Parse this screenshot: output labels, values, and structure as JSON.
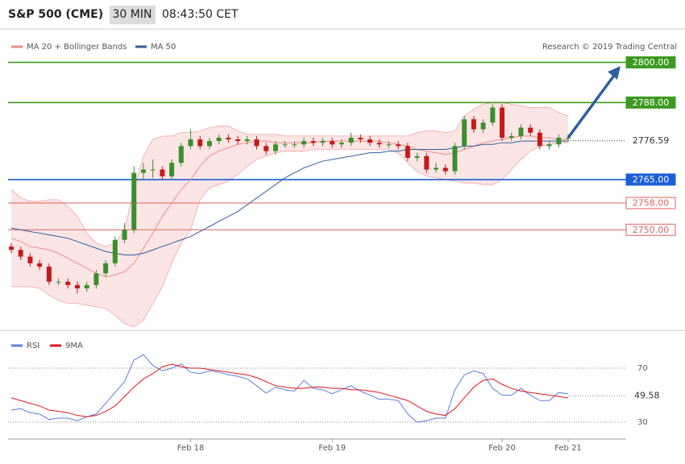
{
  "header": {
    "title": "S&P 500 (CME)",
    "interval": "30 MIN",
    "time": "08:43:50 CET"
  },
  "chart_data": [
    {
      "type": "candlestick",
      "categories": [
        null,
        null,
        null,
        null,
        null,
        null,
        null,
        null,
        null,
        null,
        null,
        null,
        null,
        null,
        null,
        null,
        null,
        null,
        null,
        "Feb 18",
        null,
        null,
        null,
        null,
        null,
        null,
        null,
        null,
        null,
        null,
        null,
        null,
        null,
        null,
        "Feb 19",
        null,
        null,
        null,
        null,
        null,
        null,
        null,
        null,
        null,
        null,
        null,
        null,
        null,
        null,
        null,
        null,
        null,
        "Feb 20",
        null,
        null,
        null,
        null,
        null,
        null,
        "Feb 21"
      ],
      "open": [
        2745,
        2744,
        2742,
        2740,
        2739,
        2734.5,
        2734.5,
        2733.5,
        2732.5,
        2733.5,
        2737,
        2740,
        2747,
        2750,
        2767,
        2768,
        2768,
        2766,
        2770,
        2775,
        2777,
        2775,
        2776.5,
        2777.5,
        2777,
        2776.5,
        2777,
        2775,
        2773.5,
        2775.5,
        2775.5,
        2775.5,
        2776.5,
        2776,
        2776.5,
        2775.5,
        2776,
        2777.5,
        2777,
        2776,
        2775.5,
        2775.5,
        2775,
        2771.5,
        2772,
        2768,
        2768.5,
        2767.5,
        2775,
        2783,
        2780,
        2782,
        2786.5,
        2777.5,
        2778,
        2780.5,
        2779,
        2775,
        2775.5,
        2777.5
      ],
      "high": [
        2746,
        2745,
        2743,
        2741,
        2740,
        2735.5,
        2735.5,
        2734.5,
        2734.5,
        2738,
        2741,
        2748,
        2752,
        2769,
        2770,
        2771,
        2769,
        2771,
        2776,
        2780,
        2778,
        2777.5,
        2778.5,
        2778.5,
        2778,
        2778,
        2778,
        2776,
        2776.5,
        2776.5,
        2776.5,
        2777.5,
        2777.5,
        2777.5,
        2777.5,
        2777,
        2779,
        2778.5,
        2778,
        2777,
        2776.5,
        2776.5,
        2776,
        2773,
        2773,
        2770,
        2769.5,
        2776,
        2784,
        2784,
        2783,
        2787.5,
        2787.5,
        2779,
        2781.5,
        2781.5,
        2780,
        2776.5,
        2778.5,
        2778.5
      ],
      "low": [
        2743,
        2741,
        2739,
        2738,
        2733.5,
        2733.5,
        2732.5,
        2731,
        2731.5,
        2732.5,
        2736,
        2739,
        2746,
        2749,
        2765,
        2765.5,
        2765,
        2765,
        2769,
        2774,
        2774,
        2774,
        2775.5,
        2776,
        2775.5,
        2775.5,
        2774,
        2772.5,
        2772.5,
        2774.5,
        2774.5,
        2774.5,
        2775,
        2775,
        2774.5,
        2774.5,
        2775,
        2776,
        2775,
        2774.5,
        2774.5,
        2774,
        2770.5,
        2770.5,
        2767,
        2767,
        2766.5,
        2766.5,
        2774,
        2779,
        2779,
        2781,
        2776.5,
        2776.5,
        2777,
        2778,
        2774,
        2774,
        2774.5,
        2776.5
      ],
      "close": [
        2744,
        2742,
        2740,
        2739,
        2734.5,
        2734.5,
        2733.5,
        2732.5,
        2733.5,
        2737,
        2740,
        2747,
        2750,
        2767,
        2768,
        2768,
        2766,
        2770,
        2775,
        2777,
        2775,
        2776.5,
        2777.5,
        2777,
        2776.5,
        2777,
        2775,
        2773.5,
        2775.5,
        2775.5,
        2775.5,
        2776.5,
        2776,
        2776.5,
        2775.5,
        2776,
        2777.5,
        2777,
        2776,
        2775.5,
        2775.5,
        2775,
        2771.5,
        2772,
        2768,
        2768.5,
        2767.5,
        2775,
        2783,
        2780,
        2782,
        2786.5,
        2777.5,
        2778,
        2780.5,
        2779,
        2775,
        2775.5,
        2777.5,
        2777.5
      ],
      "up_color": "#3a8f2e",
      "down_color": "#c41a1a",
      "ylim": [
        2720,
        2809
      ],
      "series": [
        {
          "name": "MA 20 + Bollinger Bands",
          "color": "#f08a8a",
          "values": [
            2747.5,
            2746.5,
            2745,
            2744.5,
            2744,
            2743,
            2741.5,
            2740,
            2738.5,
            2737,
            2736,
            2736.5,
            2737.5,
            2740,
            2744.5,
            2749,
            2754,
            2758,
            2762,
            2765,
            2769,
            2772,
            2773.5,
            2774.5,
            2775.5,
            2776,
            2776.5,
            2776.5,
            2776,
            2776,
            2776,
            2776,
            2776,
            2776.5,
            2776.5,
            2776.5,
            2776.5,
            2776.5,
            2776.5,
            2776.5,
            2776,
            2775.5,
            2775,
            2774,
            2773.5,
            2773,
            2772.5,
            2773,
            2774,
            2775,
            2776,
            2776.5,
            2777,
            2777.5,
            2778,
            2778,
            2777.5,
            2777.5,
            2777,
            2777
          ],
          "upper": [
            2762,
            2759.5,
            2758.5,
            2758.5,
            2759,
            2759,
            2757,
            2754,
            2749,
            2746,
            2745,
            2746,
            2750,
            2762,
            2772,
            2777,
            2778,
            2778,
            2779,
            2779,
            2779.5,
            2780.5,
            2781,
            2781,
            2779.5,
            2778.5,
            2778.5,
            2778.5,
            2778.5,
            2778,
            2778,
            2778,
            2778,
            2778,
            2778,
            2778,
            2778,
            2778,
            2778,
            2778,
            2778,
            2778,
            2778,
            2779,
            2779.5,
            2779.5,
            2779,
            2779.5,
            2784,
            2786,
            2787.5,
            2788,
            2788,
            2787.5,
            2787,
            2786.5,
            2786.5,
            2786.5,
            2785,
            2784
          ],
          "lower": [
            2733,
            2733,
            2733,
            2732.5,
            2730.5,
            2729,
            2728,
            2728,
            2727.5,
            2727,
            2726.5,
            2724.5,
            2722,
            2721,
            2723,
            2728,
            2733,
            2740,
            2746,
            2750,
            2759,
            2762.5,
            2763.5,
            2764.5,
            2766.5,
            2769,
            2771,
            2772,
            2773,
            2773.5,
            2773.5,
            2773.5,
            2774,
            2774,
            2774,
            2774,
            2774,
            2774,
            2774,
            2774,
            2774,
            2773,
            2770,
            2767.5,
            2766,
            2765.5,
            2765,
            2764.5,
            2764,
            2764,
            2763.5,
            2763.5,
            2765,
            2768,
            2771,
            2773.5,
            2775,
            2775.5,
            2776,
            2776
          ]
        },
        {
          "name": "MA 50",
          "color": "#2f5f9e",
          "values": [
            2750.5,
            2750,
            2749.5,
            2749,
            2748.5,
            2748,
            2747.5,
            2746.5,
            2745.5,
            2744.5,
            2743.5,
            2743,
            2742.5,
            2742.5,
            2743,
            2744,
            2745,
            2746,
            2747,
            2748,
            2749.5,
            2751,
            2752.5,
            2754,
            2755.5,
            2757.5,
            2759.5,
            2761.5,
            2763.5,
            2765.5,
            2767,
            2768.5,
            2769.5,
            2770.5,
            2771,
            2771.5,
            2772,
            2772.5,
            2773,
            2773,
            2773.5,
            2773.5,
            2774,
            2774,
            2774,
            2774,
            2774,
            2774.5,
            2775,
            2775,
            2775.5,
            2775.5,
            2776,
            2776,
            2776.5,
            2776.5,
            2776.5,
            2776.5,
            2776.5,
            2776.5
          ]
        }
      ],
      "levels": [
        {
          "value": 2800,
          "label": "2800.00",
          "color": "#3d9a1f"
        },
        {
          "value": 2788,
          "label": "2788.00",
          "color": "#3d9a1f"
        },
        {
          "value": 2765,
          "label": "2765.00",
          "color": "#1a5fd6"
        },
        {
          "value": 2758,
          "label": "2758.00",
          "color": "#e06060"
        },
        {
          "value": 2750,
          "label": "2750.00",
          "color": "#e06060"
        }
      ],
      "last": {
        "value": 2776.59,
        "label": "2776.59"
      },
      "source": "Research © 2019 Trading Central"
    },
    {
      "type": "line",
      "series": [
        {
          "name": "RSI",
          "color": "#5b7fdb",
          "values": [
            39,
            40,
            37,
            36,
            32,
            33,
            33,
            31,
            34,
            36,
            44,
            52,
            60,
            76,
            80,
            72,
            68,
            70,
            73,
            67,
            66,
            68,
            67,
            65,
            64,
            62,
            57,
            51.5,
            56,
            54,
            53,
            61,
            55,
            54,
            51,
            54,
            57,
            53,
            50,
            47,
            47,
            46,
            36,
            30,
            31,
            33,
            33,
            54,
            65,
            68,
            66,
            55,
            50,
            50,
            55,
            50,
            46,
            46,
            52,
            51
          ]
        },
        {
          "name": "9MA",
          "color": "#e0141e",
          "values": [
            48,
            46,
            44,
            42,
            39,
            38,
            37,
            35,
            34,
            35,
            38,
            42,
            49,
            56,
            62,
            66,
            71,
            73,
            71,
            70,
            70,
            69,
            68,
            67,
            66,
            65,
            63,
            60,
            57,
            56,
            55,
            55,
            56,
            56,
            55,
            55,
            54,
            54,
            53,
            52,
            50,
            48,
            46,
            42,
            38,
            36,
            35,
            40,
            48,
            56,
            61,
            62,
            58,
            55,
            53,
            52,
            51,
            50,
            49,
            48
          ]
        }
      ],
      "ylim": [
        17.5,
        93.3
      ],
      "yticks": [
        70,
        30
      ],
      "last": {
        "value": 49.58,
        "label": "49.58"
      }
    }
  ]
}
